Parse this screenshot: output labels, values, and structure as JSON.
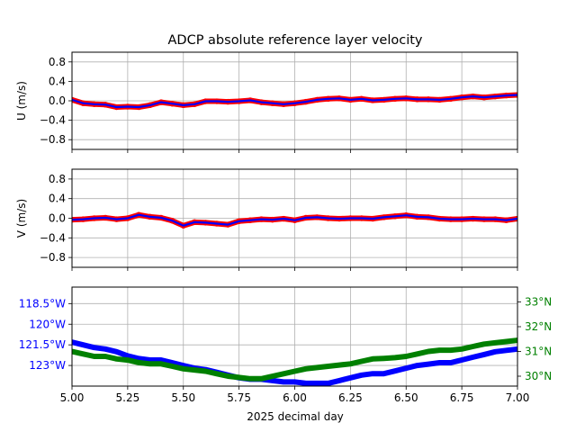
{
  "figure": {
    "title": "ADCP absolute reference layer velocity",
    "xlabel": "2025 decimal day"
  },
  "colors": {
    "raw": "#ff0000",
    "smooth": "#0000ff",
    "lon": "#0000ff",
    "lat": "#008000",
    "grid": "#b0b0b0"
  },
  "chart_data": [
    {
      "type": "line",
      "ylabel": "U (m/s)",
      "xlim": [
        5.0,
        7.0
      ],
      "ylim": [
        -1.0,
        1.0
      ],
      "yticks": [
        -0.8,
        -0.4,
        0.0,
        0.4,
        0.8
      ],
      "ytick_labels": [
        "−0.8",
        "−0.4",
        "0.0",
        "0.4",
        "0.8"
      ],
      "grid": true,
      "series": [
        {
          "x": [
            5.0,
            5.05,
            5.1,
            5.15,
            5.2,
            5.25,
            5.3,
            5.35,
            5.4,
            5.45,
            5.5,
            5.55,
            5.6,
            5.65,
            5.7,
            5.75,
            5.8,
            5.85,
            5.9,
            5.95,
            6.0,
            6.05,
            6.1,
            6.15,
            6.2,
            6.25,
            6.3,
            6.35,
            6.4,
            6.45,
            6.5,
            6.55,
            6.6,
            6.65,
            6.7,
            6.75,
            6.8,
            6.85,
            6.9,
            6.95,
            7.0
          ],
          "values": [
            0.02,
            -0.05,
            -0.07,
            -0.08,
            -0.13,
            -0.12,
            -0.13,
            -0.09,
            -0.03,
            -0.06,
            -0.09,
            -0.07,
            -0.01,
            -0.01,
            -0.02,
            -0.01,
            0.01,
            -0.03,
            -0.05,
            -0.07,
            -0.05,
            -0.02,
            0.02,
            0.04,
            0.05,
            0.02,
            0.04,
            0.01,
            0.02,
            0.04,
            0.05,
            0.03,
            0.03,
            0.02,
            0.04,
            0.07,
            0.09,
            0.07,
            0.09,
            0.11,
            0.12
          ]
        }
      ]
    },
    {
      "type": "line",
      "ylabel": "V (m/s)",
      "xlim": [
        5.0,
        7.0
      ],
      "ylim": [
        -1.0,
        1.0
      ],
      "yticks": [
        -0.8,
        -0.4,
        0.0,
        0.4,
        0.8
      ],
      "ytick_labels": [
        "−0.8",
        "−0.4",
        "0.0",
        "0.4",
        "0.8"
      ],
      "grid": true,
      "series": [
        {
          "x": [
            5.0,
            5.05,
            5.1,
            5.15,
            5.2,
            5.25,
            5.3,
            5.35,
            5.4,
            5.45,
            5.5,
            5.55,
            5.6,
            5.65,
            5.7,
            5.75,
            5.8,
            5.85,
            5.9,
            5.95,
            6.0,
            6.05,
            6.1,
            6.15,
            6.2,
            6.25,
            6.3,
            6.35,
            6.4,
            6.45,
            6.5,
            6.55,
            6.6,
            6.65,
            6.7,
            6.75,
            6.8,
            6.85,
            6.9,
            6.95,
            7.0
          ],
          "values": [
            -0.03,
            -0.02,
            0.0,
            0.01,
            -0.02,
            0.0,
            0.07,
            0.03,
            0.01,
            -0.05,
            -0.15,
            -0.08,
            -0.09,
            -0.11,
            -0.13,
            -0.06,
            -0.04,
            -0.02,
            -0.03,
            -0.01,
            -0.04,
            0.01,
            0.02,
            0.0,
            -0.01,
            0.0,
            0.0,
            -0.01,
            0.02,
            0.04,
            0.06,
            0.03,
            0.02,
            -0.01,
            -0.02,
            -0.02,
            -0.01,
            -0.02,
            -0.02,
            -0.04,
            -0.01
          ]
        }
      ]
    },
    {
      "type": "line",
      "xlim": [
        5.0,
        7.0
      ],
      "xticks": [
        5.0,
        5.25,
        5.5,
        5.75,
        6.0,
        6.25,
        6.5,
        6.75,
        7.0
      ],
      "xtick_labels": [
        "5.00",
        "5.25",
        "5.50",
        "5.75",
        "6.00",
        "6.25",
        "6.50",
        "6.75",
        "7.00"
      ],
      "grid": true,
      "left_axis": {
        "ylim": [
          -124.5,
          -117.3
        ],
        "yticks": [
          -118.5,
          -120.0,
          -121.5,
          -123.0
        ],
        "ytick_labels": [
          "118.5°W",
          "120°W",
          "121.5°W",
          "123°W"
        ]
      },
      "right_axis": {
        "ylim": [
          29.6,
          33.6
        ],
        "yticks": [
          30,
          31,
          32,
          33
        ],
        "ytick_labels": [
          "30°N",
          "31°N",
          "32°N",
          "33°N"
        ]
      },
      "series": [
        {
          "axis": "left",
          "x": [
            5.0,
            5.05,
            5.1,
            5.15,
            5.2,
            5.25,
            5.3,
            5.35,
            5.4,
            5.45,
            5.5,
            5.55,
            5.6,
            5.65,
            5.7,
            5.75,
            5.8,
            5.85,
            5.9,
            5.95,
            6.0,
            6.05,
            6.1,
            6.15,
            6.2,
            6.25,
            6.3,
            6.35,
            6.4,
            6.45,
            6.5,
            6.55,
            6.6,
            6.65,
            6.7,
            6.75,
            6.8,
            6.85,
            6.9,
            6.95,
            7.0
          ],
          "values": [
            -121.3,
            -121.5,
            -121.7,
            -121.8,
            -122.0,
            -122.3,
            -122.5,
            -122.6,
            -122.6,
            -122.8,
            -123.0,
            -123.2,
            -123.3,
            -123.5,
            -123.7,
            -123.9,
            -124.0,
            -124.0,
            -124.1,
            -124.2,
            -124.2,
            -124.3,
            -124.3,
            -124.3,
            -124.1,
            -123.9,
            -123.7,
            -123.6,
            -123.6,
            -123.4,
            -123.2,
            -123.0,
            -122.9,
            -122.8,
            -122.8,
            -122.6,
            -122.4,
            -122.2,
            -122.0,
            -121.9,
            -121.8
          ]
        },
        {
          "axis": "right",
          "x": [
            5.0,
            5.05,
            5.1,
            5.15,
            5.2,
            5.25,
            5.3,
            5.35,
            5.4,
            5.45,
            5.5,
            5.55,
            5.6,
            5.65,
            5.7,
            5.75,
            5.8,
            5.85,
            5.9,
            5.95,
            6.0,
            6.05,
            6.1,
            6.15,
            6.2,
            6.25,
            6.3,
            6.35,
            6.4,
            6.45,
            6.5,
            6.55,
            6.6,
            6.65,
            6.7,
            6.75,
            6.8,
            6.85,
            6.9,
            6.95,
            7.0
          ],
          "values": [
            31.0,
            30.9,
            30.8,
            30.8,
            30.7,
            30.65,
            30.55,
            30.5,
            30.5,
            30.4,
            30.3,
            30.25,
            30.2,
            30.1,
            30.0,
            29.95,
            29.9,
            29.9,
            30.0,
            30.1,
            30.2,
            30.3,
            30.35,
            30.4,
            30.45,
            30.5,
            30.6,
            30.7,
            30.72,
            30.75,
            30.8,
            30.9,
            31.0,
            31.05,
            31.05,
            31.1,
            31.2,
            31.3,
            31.35,
            31.4,
            31.45
          ]
        }
      ]
    }
  ]
}
